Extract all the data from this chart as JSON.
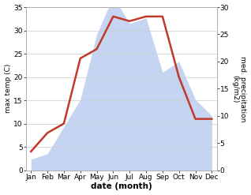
{
  "months": [
    "Jan",
    "Feb",
    "Mar",
    "Apr",
    "May",
    "Jun",
    "Jul",
    "Aug",
    "Sep",
    "Oct",
    "Nov",
    "Dec"
  ],
  "month_positions": [
    0,
    1,
    2,
    3,
    4,
    5,
    6,
    7,
    8,
    9,
    10,
    11
  ],
  "temperature": [
    4,
    8,
    10,
    24,
    26,
    33,
    32,
    33,
    33,
    20,
    11,
    11
  ],
  "precipitation": [
    2,
    3,
    8,
    13,
    25,
    32,
    27,
    28,
    18,
    20,
    13,
    10
  ],
  "temp_ylim": [
    0,
    35
  ],
  "precip_ylim": [
    0,
    30
  ],
  "temp_yticks": [
    0,
    5,
    10,
    15,
    20,
    25,
    30,
    35
  ],
  "precip_yticks": [
    0,
    5,
    10,
    15,
    20,
    25,
    30
  ],
  "ylabel_left": "max temp (C)",
  "ylabel_right": "med. precipitation\n(kg/m2)",
  "xlabel": "date (month)",
  "fill_color": "#c5d4f0",
  "line_color": "#c0392b",
  "background_color": "#ffffff",
  "grid_color": "#cccccc"
}
